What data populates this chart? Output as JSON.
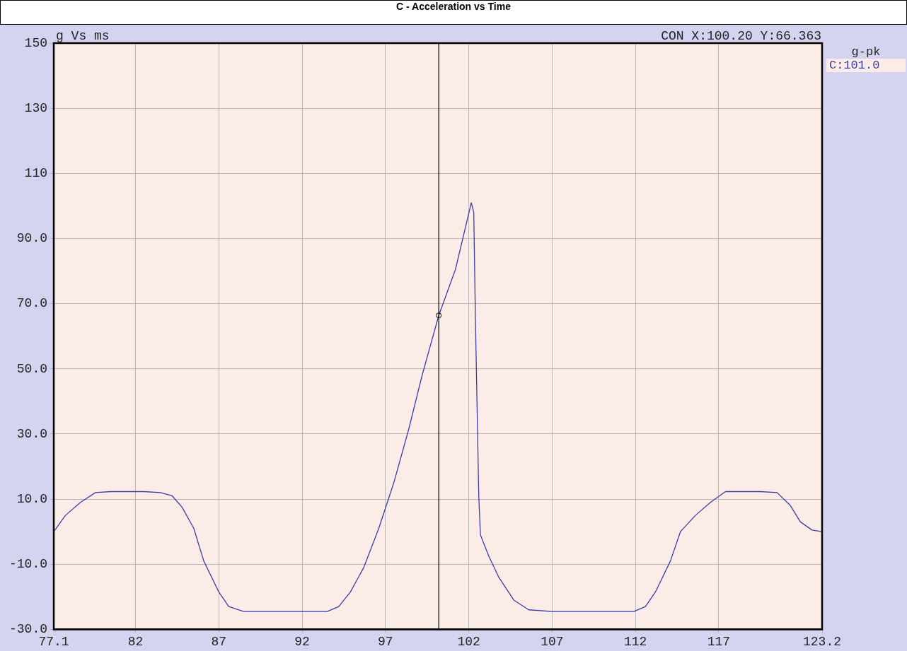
{
  "chart_data": {
    "type": "line",
    "title": "C - Acceleration vs Time",
    "ylabel": "g Vs ms",
    "legend_title": "g-pk",
    "legend": "right",
    "grid": true,
    "marker": "none",
    "line_style": "solid",
    "xlim": [
      77.1,
      123.2
    ],
    "xticks": [
      77.1,
      82,
      87,
      92,
      97,
      102,
      107,
      112,
      117,
      123.2
    ],
    "ylim": [
      -30,
      150
    ],
    "yticks": [
      {
        "value": -30,
        "label": "-30.0"
      },
      {
        "value": -10,
        "label": "-10.0"
      },
      {
        "value": 10,
        "label": "10.0"
      },
      {
        "value": 30,
        "label": "30.0"
      },
      {
        "value": 50,
        "label": "50.0"
      },
      {
        "value": 70,
        "label": "70.0"
      },
      {
        "value": 90,
        "label": "90.0"
      },
      110,
      130,
      150
    ],
    "ref_lines": [
      {
        "axis": "x",
        "value": 100.2,
        "label": null,
        "color": "#000000"
      }
    ],
    "annotations": [
      "CON X:100.20 Y:66.363"
    ],
    "series": [
      {
        "name": "C:101.0",
        "color": "#3b3ca8",
        "x": [
          77.1,
          77.8,
          78.7,
          79.6,
          80.5,
          81.5,
          82.5,
          83.5,
          84.2,
          84.8,
          85.5,
          86.1,
          87.0,
          87.6,
          88.5,
          90,
          92,
          93.5,
          94.2,
          94.9,
          95.7,
          96.6,
          97.5,
          98.4,
          99.2,
          100.2,
          101.2,
          102.15,
          102.3,
          102.4,
          102.6,
          102.7,
          103.2,
          103.8,
          104.7,
          105.6,
          107,
          109,
          111.9,
          112.6,
          113.2,
          114.1,
          114.7,
          115.6,
          116.5,
          117.4,
          118.5,
          119.5,
          120.5,
          121.3,
          121.9,
          122.6,
          123.2
        ],
        "values": [
          0,
          5,
          9,
          12,
          12.3,
          12.3,
          12.3,
          12,
          11,
          7.5,
          1,
          -9,
          -18.5,
          -23,
          -24.5,
          -24.5,
          -24.5,
          -24.5,
          -23,
          -18.5,
          -11,
          1,
          15,
          31.5,
          48,
          66.4,
          80.5,
          101,
          98,
          65,
          11,
          -1,
          -7.5,
          -14,
          -21,
          -24,
          -24.5,
          -24.5,
          -24.5,
          -23,
          -18.5,
          -9,
          0,
          5,
          9,
          12.3,
          12.3,
          12.3,
          12,
          8,
          3,
          0.5,
          0
        ]
      }
    ]
  }
}
